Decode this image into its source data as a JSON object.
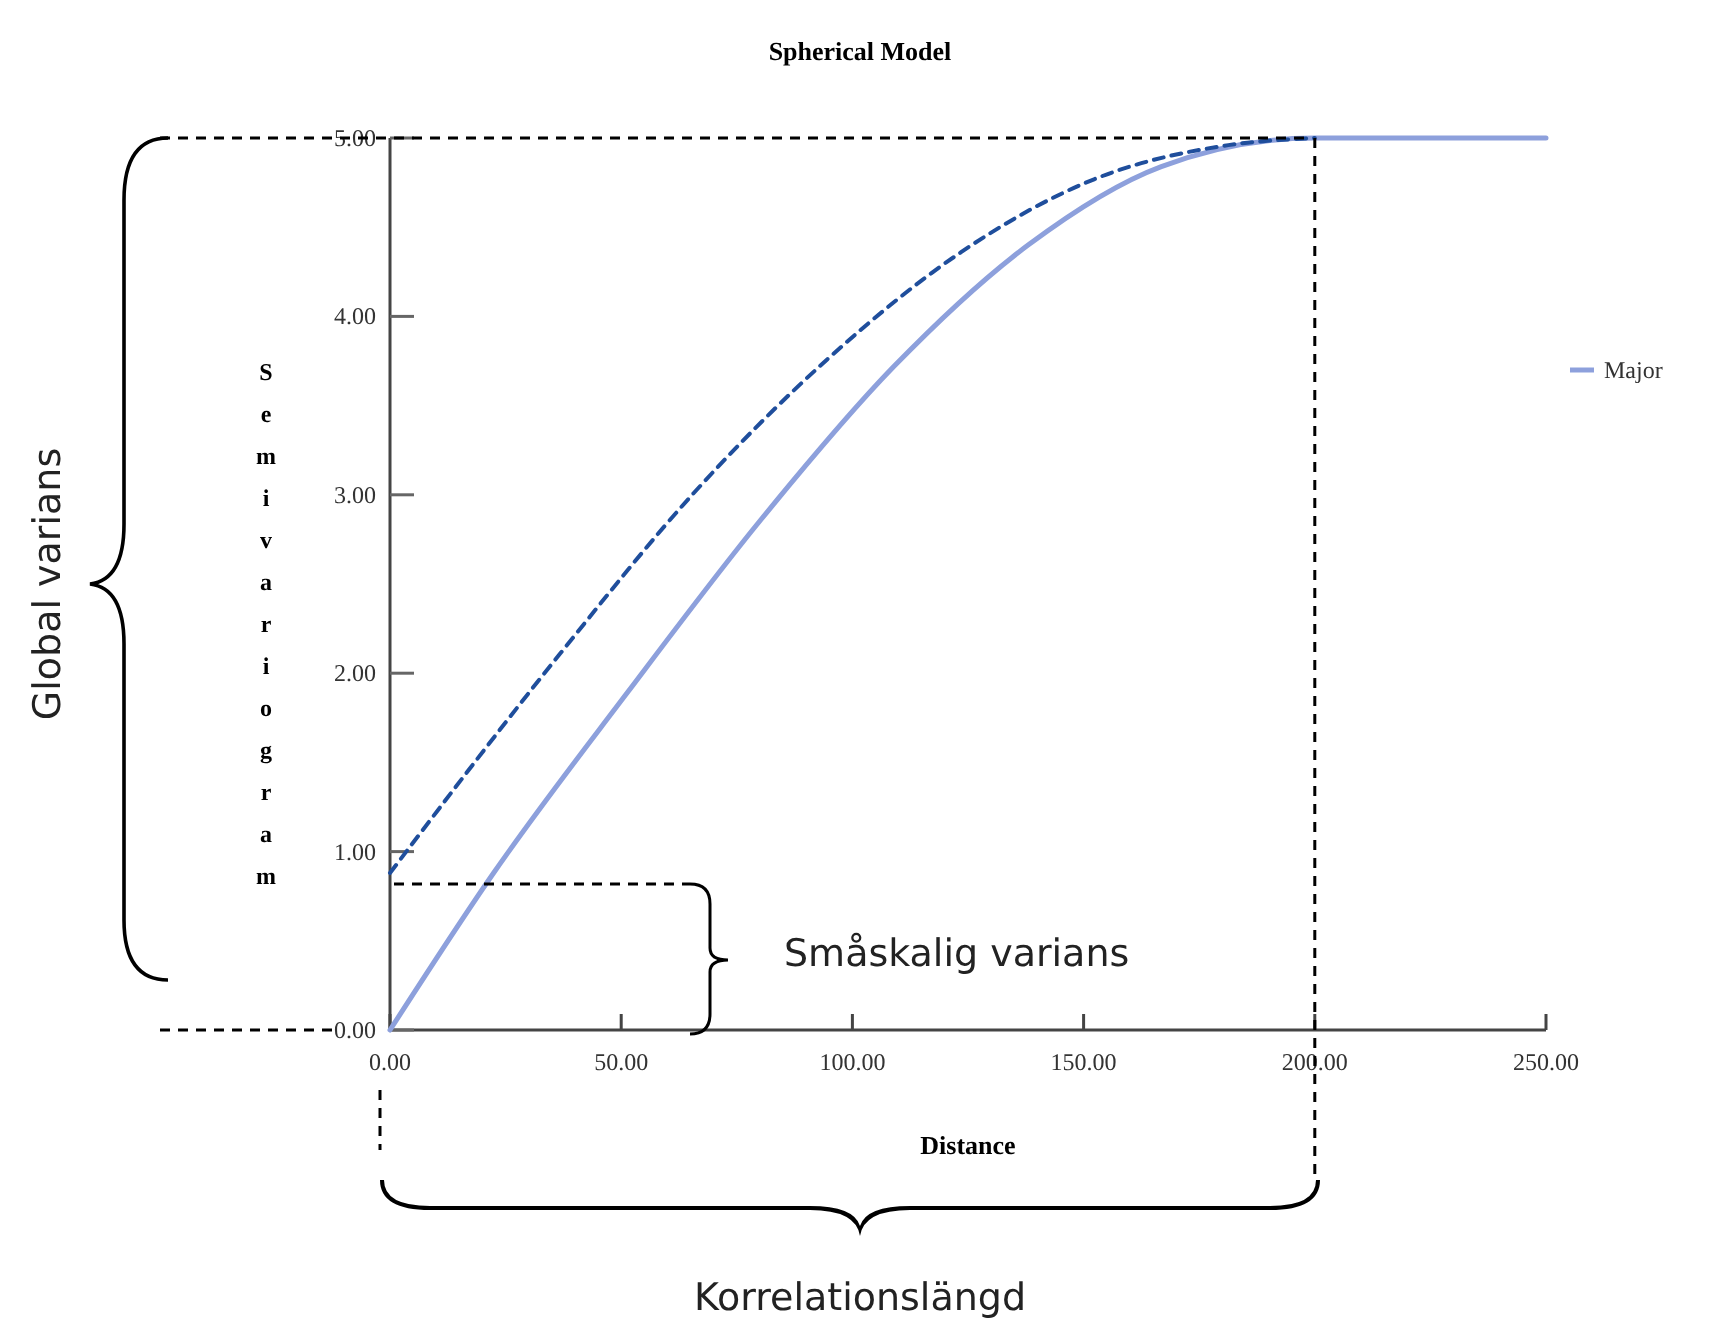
{
  "chart_data": {
    "type": "line",
    "title": "Spherical Model",
    "xlabel": "Distance",
    "ylabel": "Semivariogram",
    "xlim": [
      0,
      250
    ],
    "xticks": [
      {
        "value": 0,
        "label": "0.00"
      },
      {
        "value": 50,
        "label": "50.00"
      },
      {
        "value": 100,
        "label": "100.00"
      },
      {
        "value": 150,
        "label": "150.00"
      },
      {
        "value": 200,
        "label": "200.00"
      },
      {
        "value": 250,
        "label": "250.00"
      }
    ],
    "ylim": [
      0,
      5
    ],
    "yticks": [
      {
        "value": 0,
        "label": "0.00"
      },
      {
        "value": 1,
        "label": "1.00"
      },
      {
        "value": 2,
        "label": "2.00"
      },
      {
        "value": 3,
        "label": "3.00"
      },
      {
        "value": 4,
        "label": "4.00"
      },
      {
        "value": 5,
        "label": "5.00"
      }
    ],
    "grid": false,
    "legend": "right",
    "series": [
      {
        "name": "Major",
        "color": "#8da0dc",
        "line_style": "solid",
        "x": [
          0,
          22.4,
          51.3,
          80.2,
          109,
          138,
          166.8,
          200,
          250
        ],
        "values": [
          0,
          0.88,
          1.89,
          2.86,
          3.72,
          4.4,
          4.84,
          5,
          5
        ]
      },
      {
        "color": "#1f4e9c",
        "line_style": "dashed",
        "x": [
          0,
          36.8,
          65.7,
          94.6,
          123.5,
          152.4,
          181.3,
          200
        ],
        "values": [
          0.88,
          2.11,
          3.01,
          3.76,
          4.36,
          4.77,
          4.96,
          5
        ]
      }
    ],
    "ref_lines": [
      {
        "axis": "x",
        "value": 200,
        "color": "#000000",
        "line_style": "dashed"
      }
    ],
    "annotations": [
      "Global varians",
      "Småskalig varians",
      "Korrelationslängd"
    ]
  }
}
